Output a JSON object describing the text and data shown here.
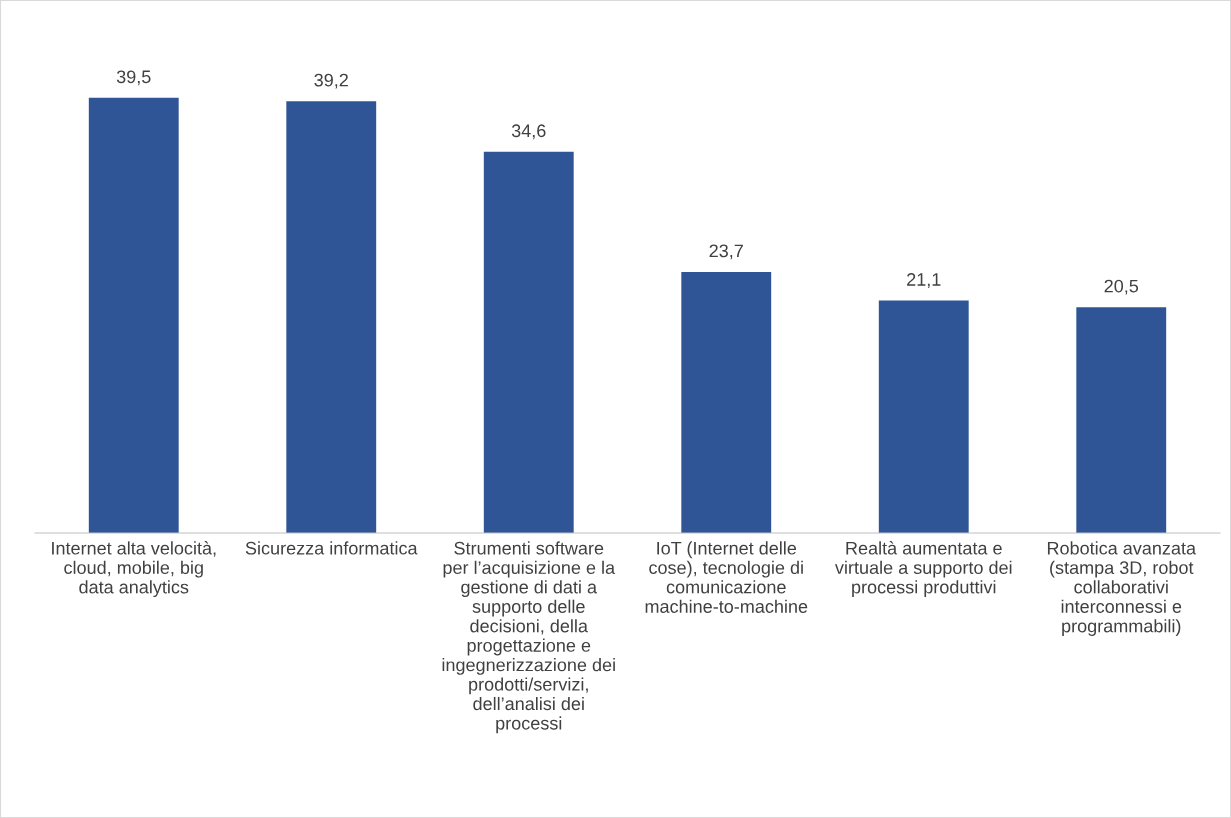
{
  "chart_data": {
    "type": "bar",
    "categories": [
      "Internet alta velocità,\ncloud, mobile, big\ndata analytics",
      "Sicurezza informatica",
      "Strumenti software\nper l’acquisizione e la\ngestione di dati a\nsupporto delle\ndecisioni, della\nprogettazione e\ningegnerizzazione dei\nprodotti/servizi,\ndell’analisi dei\nprocessi",
      "IoT (Internet delle\ncose), tecnologie di\ncomunicazione\nmachine-to-machine",
      "Realtà aumentata e\nvirtuale a supporto dei\nprocessi produttivi",
      "Robotica avanzata\n(stampa 3D, robot\ncollaborativi\ninterconnessi e\nprogrammabili)"
    ],
    "values": [
      39.5,
      39.2,
      34.6,
      23.7,
      21.1,
      20.5
    ],
    "value_labels": [
      "39,5",
      "39,2",
      "34,6",
      "23,7",
      "21,1",
      "20,5"
    ],
    "color": "#2f5597"
  }
}
